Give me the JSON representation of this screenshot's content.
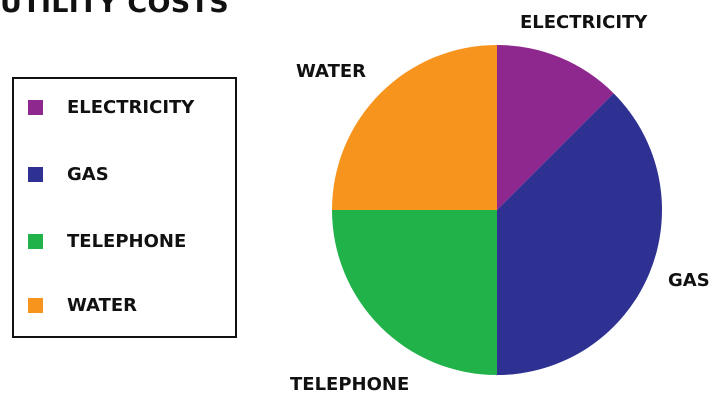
{
  "chart_data": {
    "type": "pie",
    "title": "UTILITY COSTS",
    "categories": [
      "ELECTRICITY",
      "GAS",
      "TELEPHONE",
      "WATER"
    ],
    "values": [
      12.5,
      37.5,
      25,
      25
    ],
    "colors": [
      "#8e288e",
      "#2e3192",
      "#21b24a",
      "#f7941d"
    ],
    "legend": {
      "placement": "left",
      "entries": [
        "ELECTRICITY",
        "GAS",
        "TELEPHONE",
        "WATER"
      ]
    },
    "slice_labels": [
      "ELECTRICITY",
      "GAS",
      "TELEPHONE",
      "WATER"
    ]
  }
}
